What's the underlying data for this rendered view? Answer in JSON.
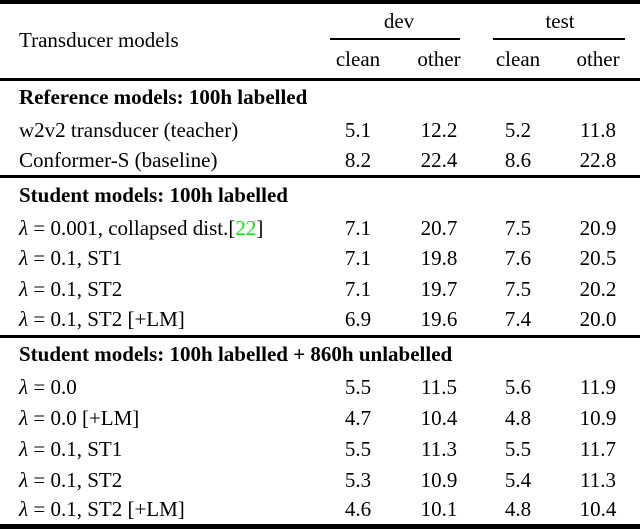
{
  "colors": {
    "text": "#000000",
    "rule": "#000000",
    "citation_green": "#00EE00"
  },
  "table": {
    "model_column_header": "Transducer models",
    "column_groups": [
      {
        "label": "dev",
        "sub_columns": [
          "clean",
          "other"
        ]
      },
      {
        "label": "test",
        "sub_columns": [
          "clean",
          "other"
        ]
      }
    ],
    "citation_brackets": {
      "open": "[",
      "close": "]"
    },
    "sections": [
      {
        "title": "Reference models: 100h labelled",
        "rows": [
          {
            "label": "w2v2 transducer (teacher)",
            "citation": null,
            "values": [
              "5.1",
              "12.2",
              "5.2",
              "11.8"
            ]
          },
          {
            "label": "Conformer-S (baseline)",
            "citation": null,
            "values": [
              "8.2",
              "22.4",
              "8.6",
              "22.8"
            ]
          }
        ]
      },
      {
        "title": "Student models: 100h labelled",
        "rows": [
          {
            "label": "λ = 0.001, collapsed dist.",
            "citation": "22",
            "values": [
              "7.1",
              "20.7",
              "7.5",
              "20.9"
            ]
          },
          {
            "label": "λ = 0.1, ST1",
            "citation": null,
            "values": [
              "7.1",
              "19.8",
              "7.6",
              "20.5"
            ]
          },
          {
            "label": "λ = 0.1, ST2",
            "citation": null,
            "values": [
              "7.1",
              "19.7",
              "7.5",
              "20.2"
            ]
          },
          {
            "label": "λ = 0.1, ST2 [+LM]",
            "citation": null,
            "values": [
              "6.9",
              "19.6",
              "7.4",
              "20.0"
            ]
          }
        ]
      },
      {
        "title": "Student models: 100h labelled + 860h unlabelled",
        "rows": [
          {
            "label": "λ = 0.0",
            "citation": null,
            "values": [
              "5.5",
              "11.5",
              "5.6",
              "11.9"
            ]
          },
          {
            "label": "λ = 0.0 [+LM]",
            "citation": null,
            "values": [
              "4.7",
              "10.4",
              "4.8",
              "10.9"
            ]
          },
          {
            "label": "λ = 0.1, ST1",
            "citation": null,
            "values": [
              "5.5",
              "11.3",
              "5.5",
              "11.7"
            ]
          },
          {
            "label": "λ = 0.1, ST2",
            "citation": null,
            "values": [
              "5.3",
              "10.9",
              "5.4",
              "11.3"
            ]
          },
          {
            "label": "λ = 0.1, ST2 [+LM]",
            "citation": null,
            "values": [
              "4.6",
              "10.1",
              "4.8",
              "10.4"
            ]
          }
        ]
      }
    ]
  }
}
